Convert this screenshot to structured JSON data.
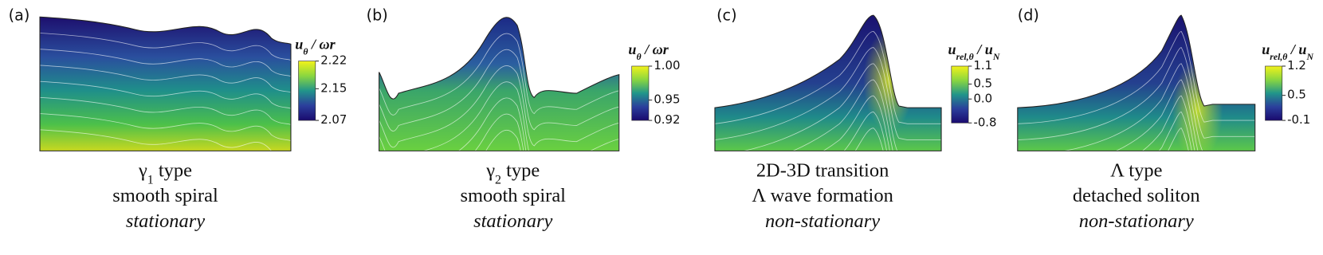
{
  "panels": [
    {
      "label": "(a)",
      "colorbar": {
        "title": [
          {
            "text": "u",
            "sub": "θ"
          },
          {
            "text": " / ωr"
          }
        ],
        "range": [
          2.07,
          2.22
        ],
        "ticks": [
          2.22,
          2.15,
          2.07
        ]
      },
      "caption": [
        [
          {
            "text": "γ",
            "sub": "1"
          },
          {
            "text": " type"
          }
        ],
        [
          {
            "text": "smooth spiral"
          }
        ],
        [
          {
            "text": "stationary"
          }
        ]
      ]
    },
    {
      "label": "(b)",
      "colorbar": {
        "title": [
          {
            "text": "u",
            "sub": "θ"
          },
          {
            "text": " / ωr"
          }
        ],
        "range": [
          0.92,
          1.0
        ],
        "ticks": [
          {
            "value": 1.0,
            "label": "1.00"
          },
          0.95,
          0.92
        ]
      },
      "caption": [
        [
          {
            "text": "γ",
            "sub": "2"
          },
          {
            "text": " type"
          }
        ],
        [
          {
            "text": "smooth spiral"
          }
        ],
        [
          {
            "text": "stationary"
          }
        ]
      ]
    },
    {
      "label": "(c)",
      "colorbar": {
        "title": [
          {
            "text": "u",
            "sub": "rel,θ"
          },
          {
            "text": " / u",
            "sub": "N"
          }
        ],
        "range": [
          -0.8,
          1.1
        ],
        "ticks": [
          1.1,
          0.5,
          {
            "value": 0,
            "label": "0.0"
          },
          -0.8
        ]
      },
      "caption": [
        [
          {
            "text": "2D-3D transition"
          }
        ],
        [
          {
            "text": "Λ wave formation"
          }
        ],
        [
          {
            "text": "non-stationary"
          }
        ]
      ]
    },
    {
      "label": "(d)",
      "colorbar": {
        "title": [
          {
            "text": "u",
            "sub": "rel,θ"
          },
          {
            "text": " / u",
            "sub": "N"
          }
        ],
        "range": [
          -0.1,
          1.2
        ],
        "ticks": [
          1.2,
          0.5,
          -0.1
        ]
      },
      "caption": [
        [
          {
            "text": "Λ type"
          }
        ],
        [
          {
            "text": "detached soliton"
          }
        ],
        [
          {
            "text": "non-stationary"
          }
        ]
      ]
    }
  ]
}
